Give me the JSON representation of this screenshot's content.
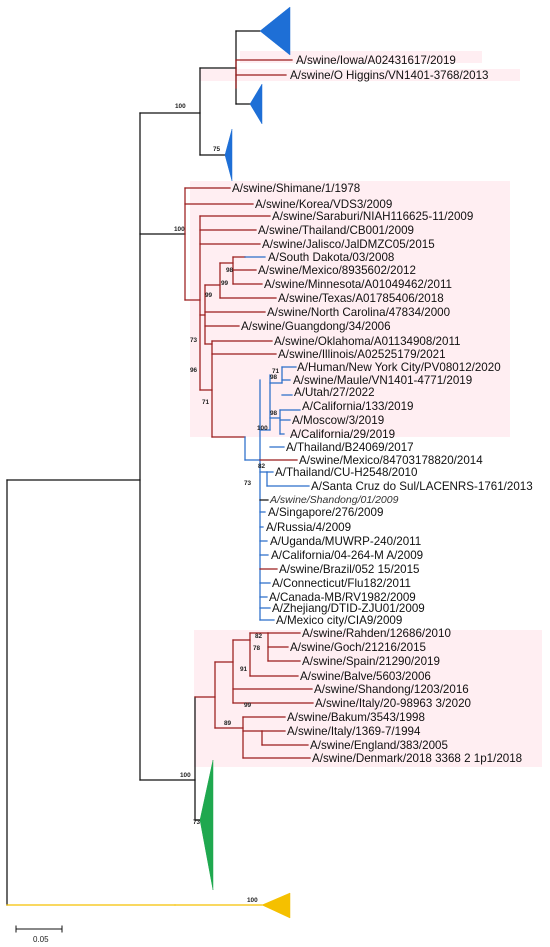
{
  "colors": {
    "red_clade": "#9b1c1c",
    "blue_clade": "#2b6ec9",
    "blue_triangle": "#1e6fd6",
    "green_triangle": "#1fa84f",
    "yellow_outgroup": "#f5c000",
    "highlight": "#fde3ea",
    "root": "#111111"
  },
  "tree": {
    "clade1_labels": [
      "A/swine/Iowa/A02431617/2019",
      "A/swine/O Higgins/VN1401-3768/2013"
    ],
    "red_labels": [
      "A/swine/Shimane/1/1978",
      "A/swine/Korea/VDS3/2009",
      "A/swine/Saraburi/NIAH116625-11/2009",
      "A/swine/Thailand/CB001/2009",
      "A/swine/Jalisco/JalDMZC05/2015",
      "A/South Dakota/03/2008",
      "A/swine/Mexico/8935602/2012",
      "A/swine/Minnesota/A01049462/2011",
      "A/swine/Texas/A01785406/2018",
      "A/swine/North Carolina/47834/2000",
      "A/swine/Guangdong/34/2006",
      "A/swine/Oklahoma/A01134908/2011",
      "A/swine/Illinois/A02525179/2021"
    ],
    "pdm_labels": [
      "A/Human/New York City/PV08012/2020",
      "A/swine/Maule/VN1401-4771/2019",
      "A/Utah/27/2022",
      "A/California/133/2019",
      "A/Moscow/3/2019",
      "A/California/29/2019",
      "A/Thailand/B24069/2017",
      "A/swine/Mexico/84703178820/2014",
      "A/Thailand/CU-H2548/2010",
      "A/Santa Cruz do Sul/LACENRS-1761/2013",
      "A/swine/Shandong/01/2009",
      "A/Singapore/276/2009",
      "A/Russia/4/2009",
      "A/Uganda/MUWRP-240/2011",
      "A/California/04-264-M A/2009",
      "A/swine/Brazil/052 15/2015",
      "A/Connecticut/Flu182/2011",
      "A/Canada-MB/RV1982/2009",
      "A/Zhejiang/DTID-ZJU01/2009",
      "A/Mexico city/CIA9/2009"
    ],
    "eu_labels": [
      "A/swine/Rahden/12686/2010",
      "A/swine/Goch/21216/2015",
      "A/swine/Spain/21290/2019",
      "A/swine/Balve/5603/2006",
      "A/swine/Shandong/1203/2016",
      "A/swine/Italy/20-98963 3/2020",
      "A/swine/Bakum/3543/1998",
      "A/swine/Italy/1369-7/1994",
      "A/swine/England/383/2005",
      "A/swine/Denmark/2018 3368 2 1p1/2018"
    ],
    "bootstraps": {
      "b100_top": "100",
      "b75": "75",
      "b100_red": "100",
      "b98_a": "98",
      "b99_a": "99",
      "b99_b": "99",
      "b73_red": "73",
      "b96": "96",
      "b71_red": "71",
      "b71_pdm": "71",
      "b98_pdm": "98",
      "b98_b": "98",
      "b100_pdm": "100",
      "b82_pdm": "82",
      "b73_pdm": "73",
      "b82_eu": "82",
      "b78": "78",
      "b91": "91",
      "b99_eu": "99",
      "b89": "89",
      "b100_eu": "100",
      "b73_green": "73",
      "b100_yellow": "100"
    },
    "scale_label": "0.05"
  }
}
